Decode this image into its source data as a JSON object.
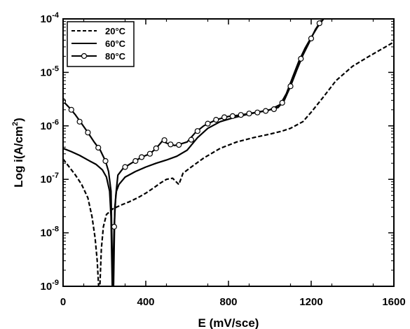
{
  "chart_data": {
    "type": "line",
    "xlabel": "E (mV/sce)",
    "ylabel_main": "Log i(A/cm",
    "ylabel_sup": "2",
    "ylabel_end": ")",
    "xlim": [
      0,
      1600
    ],
    "ylim_log10": [
      -9,
      -4
    ],
    "y_scale": "log",
    "grid": false,
    "legend_position": "top-left",
    "x_ticks": [
      {
        "value": 0,
        "label": "0"
      },
      {
        "value": 400,
        "label": "400"
      },
      {
        "value": 800,
        "label": "800"
      },
      {
        "value": 1200,
        "label": "1200"
      },
      {
        "value": 1600,
        "label": "1600"
      }
    ],
    "y_ticks": [
      {
        "exp": -9,
        "base": "10",
        "sup": "-9"
      },
      {
        "exp": -8,
        "base": "10",
        "sup": "-8"
      },
      {
        "exp": -7,
        "base": "10",
        "sup": "-7"
      },
      {
        "exp": -6,
        "base": "10",
        "sup": "-6"
      },
      {
        "exp": -5,
        "base": "10",
        "sup": "-5"
      },
      {
        "exp": -4,
        "base": "10",
        "sup": "-4"
      }
    ],
    "series": [
      {
        "name": "20°C",
        "style": "dashed",
        "color": "#000000",
        "points": [
          [
            0,
            2.4e-07
          ],
          [
            30,
            1.7e-07
          ],
          [
            60,
            1.2e-07
          ],
          [
            90,
            8e-08
          ],
          [
            120,
            4.5e-08
          ],
          [
            140,
            2e-08
          ],
          [
            155,
            8e-09
          ],
          [
            165,
            3e-09
          ],
          [
            172,
            1e-09
          ],
          [
            178,
            1e-09
          ],
          [
            185,
            5e-09
          ],
          [
            195,
            1.3e-08
          ],
          [
            210,
            2.2e-08
          ],
          [
            240,
            2.8e-08
          ],
          [
            280,
            3.3e-08
          ],
          [
            320,
            3.8e-08
          ],
          [
            360,
            4.5e-08
          ],
          [
            400,
            5.5e-08
          ],
          [
            440,
            7e-08
          ],
          [
            470,
            8.5e-08
          ],
          [
            500,
            1e-07
          ],
          [
            530,
            1.05e-07
          ],
          [
            560,
            8e-08
          ],
          [
            580,
            1.3e-07
          ],
          [
            620,
            1.7e-07
          ],
          [
            680,
            2.5e-07
          ],
          [
            760,
            3.8e-07
          ],
          [
            840,
            5e-07
          ],
          [
            920,
            6e-07
          ],
          [
            1000,
            7e-07
          ],
          [
            1060,
            8e-07
          ],
          [
            1100,
            9e-07
          ],
          [
            1160,
            1.2e-06
          ],
          [
            1200,
            1.8e-06
          ],
          [
            1260,
            3.5e-06
          ],
          [
            1320,
            7e-06
          ],
          [
            1400,
            1.3e-05
          ],
          [
            1480,
            2e-05
          ],
          [
            1560,
            3e-05
          ],
          [
            1600,
            3.7e-05
          ]
        ]
      },
      {
        "name": "60°C",
        "style": "solid",
        "color": "#000000",
        "points": [
          [
            0,
            3.8e-07
          ],
          [
            40,
            3.3e-07
          ],
          [
            80,
            2.8e-07
          ],
          [
            120,
            2.3e-07
          ],
          [
            160,
            1.9e-07
          ],
          [
            190,
            1.5e-07
          ],
          [
            210,
            1.1e-07
          ],
          [
            225,
            6e-08
          ],
          [
            232,
            2e-08
          ],
          [
            238,
            1e-09
          ],
          [
            244,
            1e-09
          ],
          [
            250,
            3e-08
          ],
          [
            258,
            6e-08
          ],
          [
            270,
            8e-08
          ],
          [
            300,
            1.1e-07
          ],
          [
            350,
            1.4e-07
          ],
          [
            400,
            1.7e-07
          ],
          [
            450,
            2e-07
          ],
          [
            500,
            2.3e-07
          ],
          [
            550,
            2.7e-07
          ],
          [
            600,
            3.5e-07
          ],
          [
            650,
            6e-07
          ],
          [
            700,
            9e-07
          ],
          [
            760,
            1.2e-06
          ],
          [
            820,
            1.4e-06
          ],
          [
            880,
            1.6e-06
          ],
          [
            940,
            1.8e-06
          ],
          [
            1000,
            2e-06
          ],
          [
            1050,
            2.5e-06
          ],
          [
            1080,
            4e-06
          ],
          [
            1110,
            8e-06
          ],
          [
            1140,
            1.6e-05
          ],
          [
            1170,
            2.8e-05
          ],
          [
            1200,
            4.5e-05
          ],
          [
            1230,
            7e-05
          ],
          [
            1260,
            0.0001
          ]
        ]
      },
      {
        "name": "80°C",
        "style": "solid-circle",
        "color": "#000000",
        "points": [
          [
            0,
            2.9e-06
          ],
          [
            30,
            2.2e-06
          ],
          [
            60,
            1.6e-06
          ],
          [
            90,
            1.1e-06
          ],
          [
            120,
            7.5e-07
          ],
          [
            150,
            5e-07
          ],
          [
            180,
            3.5e-07
          ],
          [
            205,
            2.2e-07
          ],
          [
            220,
            1.4e-07
          ],
          [
            232,
            6e-08
          ],
          [
            240,
            1e-09
          ],
          [
            247,
            1.3e-08
          ],
          [
            255,
            5e-08
          ],
          [
            265,
            1.2e-07
          ],
          [
            290,
            1.6e-07
          ],
          [
            330,
            2e-07
          ],
          [
            380,
            2.6e-07
          ],
          [
            420,
            3e-07
          ],
          [
            450,
            3.8e-07
          ],
          [
            480,
            5.2e-07
          ],
          [
            510,
            4.6e-07
          ],
          [
            540,
            4.3e-07
          ],
          [
            570,
            4.6e-07
          ],
          [
            600,
            5e-07
          ],
          [
            640,
            7.5e-07
          ],
          [
            680,
            1e-06
          ],
          [
            740,
            1.3e-06
          ],
          [
            800,
            1.5e-06
          ],
          [
            860,
            1.6e-06
          ],
          [
            920,
            1.75e-06
          ],
          [
            980,
            1.9e-06
          ],
          [
            1040,
            2.2e-06
          ],
          [
            1070,
            3e-06
          ],
          [
            1100,
            5.5e-06
          ],
          [
            1130,
            1.1e-05
          ],
          [
            1160,
            2.1e-05
          ],
          [
            1190,
            3.6e-05
          ],
          [
            1220,
            6.3e-05
          ],
          [
            1250,
            9.5e-05
          ]
        ],
        "marker_points": [
          [
            0,
            2.9e-06
          ],
          [
            40,
            2e-06
          ],
          [
            80,
            1.2e-06
          ],
          [
            120,
            7.5e-07
          ],
          [
            170,
            3.9e-07
          ],
          [
            205,
            2.2e-07
          ],
          [
            247,
            1.3e-08
          ],
          [
            300,
            1.7e-07
          ],
          [
            350,
            2.2e-07
          ],
          [
            380,
            2.6e-07
          ],
          [
            420,
            3e-07
          ],
          [
            450,
            3.8e-07
          ],
          [
            490,
            5.4e-07
          ],
          [
            520,
            4.5e-07
          ],
          [
            560,
            4.4e-07
          ],
          [
            620,
            5.5e-07
          ],
          [
            650,
            8e-07
          ],
          [
            700,
            1.1e-06
          ],
          [
            740,
            1.3e-06
          ],
          [
            780,
            1.45e-06
          ],
          [
            820,
            1.52e-06
          ],
          [
            860,
            1.6e-06
          ],
          [
            900,
            1.7e-06
          ],
          [
            940,
            1.78e-06
          ],
          [
            980,
            1.9e-06
          ],
          [
            1020,
            2.05e-06
          ],
          [
            1060,
            2.7e-06
          ],
          [
            1100,
            5.5e-06
          ],
          [
            1150,
            1.8e-05
          ],
          [
            1200,
            4.3e-05
          ],
          [
            1240,
            8.3e-05
          ]
        ]
      }
    ]
  }
}
